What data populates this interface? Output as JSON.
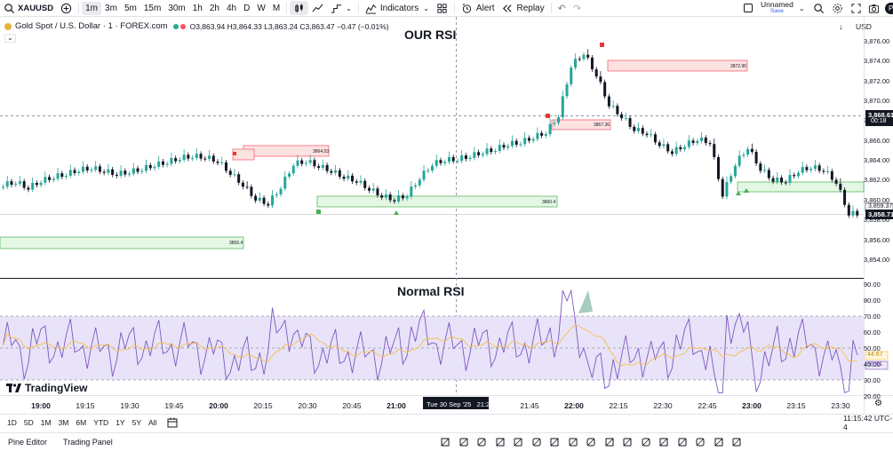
{
  "toolbar": {
    "symbol": "XAUUSD",
    "timeframes": [
      "1m",
      "3m",
      "5m",
      "15m",
      "30m",
      "1h",
      "2h",
      "4h",
      "D",
      "W",
      "M"
    ],
    "active_timeframe": "1m",
    "indicators_label": "Indicators",
    "alert_label": "Alert",
    "replay_label": "Replay",
    "layout_name": "Unnamed",
    "layout_status": "Save"
  },
  "legend": {
    "title": "Gold Spot / U.S. Dollar · 1 · FOREX.com",
    "ohlc": "O3,863.94 H3,864.33 L3,863.24 C3,863.47 −0.47 (−0.01%)",
    "currency": "USD"
  },
  "main_chart_title": "OUR RSI",
  "rsi_title": "Normal RSI",
  "price_axis": {
    "labels": [
      "3,876.00",
      "3,874.00",
      "3,872.00",
      "3,870.00",
      "3,868.00",
      "3,866.00",
      "3,864.00",
      "3,862.00",
      "3,860.00",
      "3,858.00",
      "3,856.00",
      "3,854.00"
    ],
    "current_price": "3,868.61",
    "countdown": "00:18",
    "crosshair_price": "3,858.71",
    "crosshair_prev": "3,859.37"
  },
  "rsi_axis": {
    "labels": [
      "90.00",
      "80.00",
      "70.00",
      "60.00",
      "50.00",
      "40.00",
      "30.00",
      "20.00"
    ],
    "ma_value": "44.67",
    "rsi_value": "38.61",
    "colors": {
      "band": "#e8e3f8",
      "line": "#7e57c2",
      "ma": "#f7c04a"
    }
  },
  "zones": {
    "red": [
      "3864.53",
      "3872.95",
      "3867.36"
    ],
    "green": [
      "3860.4",
      "3856.4"
    ]
  },
  "time_axis": {
    "labels": [
      "19:00",
      "19:15",
      "19:30",
      "19:45",
      "20:00",
      "20:15",
      "20:30",
      "20:45",
      "21:00",
      "21:45",
      "22:00",
      "22:15",
      "22:30",
      "22:45",
      "23:00",
      "23:15",
      "23:30"
    ],
    "cursor_label": "Tue 30 Sep '25   21:20"
  },
  "ranges": [
    "1D",
    "5D",
    "1M",
    "3M",
    "6M",
    "YTD",
    "1Y",
    "5Y",
    "All"
  ],
  "clock": "11:15:42 UTC-4",
  "footer": {
    "pine_editor": "Pine Editor",
    "trading_panel": "Trading Panel"
  },
  "watermark": "TradingView",
  "chart_data": {
    "type": "candlestick",
    "price_range": [
      3853,
      3877
    ],
    "candles_close_sampled": [
      3861.5,
      3861.8,
      3861.2,
      3861.9,
      3862.3,
      3862.6,
      3863.0,
      3863.2,
      3862.9,
      3862.6,
      3862.8,
      3863.1,
      3863.5,
      3863.8,
      3864.2,
      3864.4,
      3864.3,
      3863.9,
      3862.7,
      3861.5,
      3860.1,
      3859.6,
      3861.3,
      3863.6,
      3863.9,
      3863.4,
      3862.9,
      3862.3,
      3861.9,
      3861.1,
      3860.4,
      3860.0,
      3860.5,
      3862.2,
      3863.6,
      3864.0,
      3864.1,
      3864.4,
      3864.8,
      3865.1,
      3865.6,
      3865.8,
      3866.3,
      3866.8,
      3868.5,
      3873.5,
      3874.8,
      3872.6,
      3869.6,
      3868.4,
      3867.1,
      3866.7,
      3865.6,
      3864.8,
      3865.5,
      3866.1,
      3865.8,
      3860.5,
      3863.6,
      3865.3,
      3863.1,
      3862.0,
      3861.9,
      3862.9,
      3863.3,
      3863.0,
      3861.8,
      3858.6
    ],
    "rsi_range": [
      20,
      90
    ],
    "rsi_levels": [
      70,
      50,
      30
    ]
  }
}
